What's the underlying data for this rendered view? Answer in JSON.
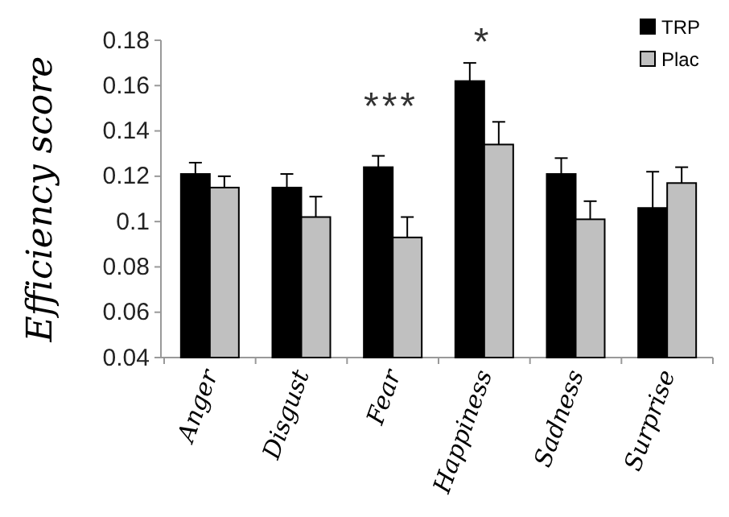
{
  "chart_data": {
    "type": "bar",
    "ylabel": "Efficiency score",
    "categories": [
      "Anger",
      "Disgust",
      "Fear",
      "Happiness",
      "Sadness",
      "Surprise"
    ],
    "series": [
      {
        "name": "TRP",
        "color": "#000000",
        "values": [
          0.121,
          0.115,
          0.124,
          0.162,
          0.121,
          0.106
        ],
        "errors": [
          [
            0.121,
            0.126
          ],
          [
            0.115,
            0.121
          ],
          [
            0.124,
            0.129
          ],
          [
            0.162,
            0.17
          ],
          [
            0.121,
            0.128
          ],
          [
            0.106,
            0.122
          ]
        ]
      },
      {
        "name": "Plac",
        "color": "#c0c0c0",
        "values": [
          0.115,
          0.102,
          0.093,
          0.134,
          0.101,
          0.117
        ],
        "errors": [
          [
            0.115,
            0.12
          ],
          [
            0.102,
            0.111
          ],
          [
            0.093,
            0.102
          ],
          [
            0.134,
            0.144
          ],
          [
            0.101,
            0.109
          ],
          [
            0.117,
            0.124
          ]
        ]
      }
    ],
    "ylim": [
      0.04,
      0.18
    ],
    "yticks": [
      0.04,
      0.06,
      0.08,
      0.1,
      0.12,
      0.14,
      0.16,
      0.18
    ],
    "annotations": [
      "***",
      "*"
    ],
    "legend": "top right",
    "grid": false
  }
}
